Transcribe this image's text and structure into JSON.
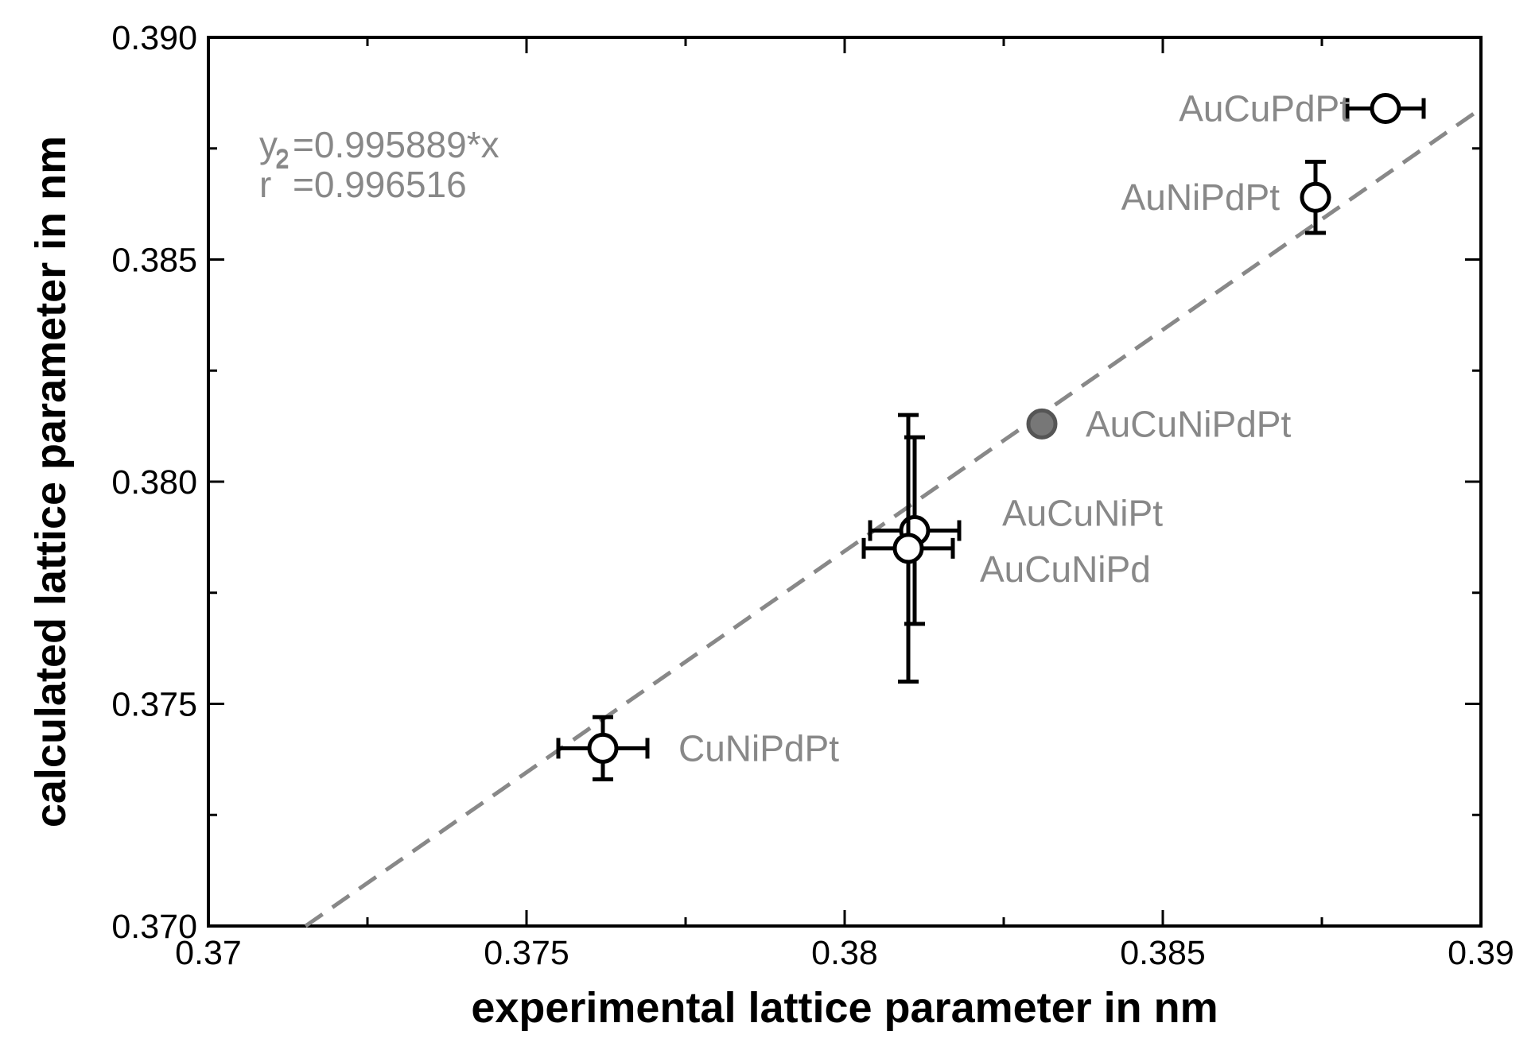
{
  "chart_data": {
    "type": "scatter",
    "title": "",
    "xlabel": "experimental lattice parameter in nm",
    "ylabel": "calculated lattice parameter in nm",
    "xlim": [
      0.37,
      0.39
    ],
    "ylim": [
      0.37,
      0.39
    ],
    "x_ticks": [
      0.37,
      0.375,
      0.38,
      0.385,
      0.39
    ],
    "x_tick_labels": [
      "0.37",
      "0.375",
      "0.38",
      "0.385",
      "0.39"
    ],
    "y_ticks": [
      0.37,
      0.375,
      0.38,
      0.385,
      0.39
    ],
    "y_tick_labels": [
      "0.370",
      "0.375",
      "0.380",
      "0.385",
      "0.390"
    ],
    "grid": false,
    "fit": {
      "slope": 0.995889,
      "equation_prefix": "y",
      "equation_sub": "2",
      "equation_text": "=0.995889*x",
      "r2_prefix": "r",
      "r2_text": "=0.996516",
      "color": "#888888",
      "style": "dashed"
    },
    "points": [
      {
        "label": "AuCuPdPt",
        "x": 0.3885,
        "y": 0.3884,
        "xerr": 0.0006,
        "yerr": 0,
        "filled": false
      },
      {
        "label": "AuNiPdPt",
        "x": 0.3874,
        "y": 0.3864,
        "xerr": 0,
        "yerr": 0.0008,
        "filled": false
      },
      {
        "label": "AuCuNiPdPt",
        "x": 0.3831,
        "y": 0.3813,
        "xerr": 0,
        "yerr": 0,
        "filled": true
      },
      {
        "label": "AuCuNiPt",
        "x": 0.3811,
        "y": 0.3789,
        "xerr": 0.0007,
        "yerr": 0.0021,
        "filled": false
      },
      {
        "label": "AuCuNiPd",
        "x": 0.381,
        "y": 0.3785,
        "xerr": 0.0007,
        "yerr": 0.003,
        "filled": false
      },
      {
        "label": "CuNiPdPt",
        "x": 0.3762,
        "y": 0.374,
        "xerr": 0.0007,
        "yerr": 0.0007,
        "filled": false
      }
    ],
    "colors": {
      "marker_edge": "#000000",
      "marker_fill": "#ffffff",
      "filled_marker": "#777777",
      "label": "#888888"
    }
  }
}
